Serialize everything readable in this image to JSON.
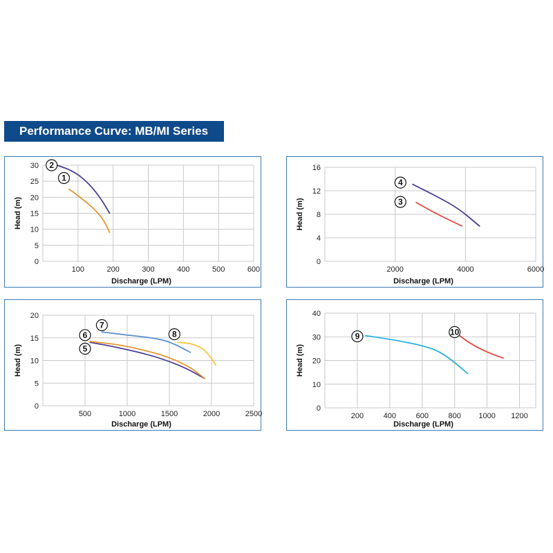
{
  "page": {
    "title": "Performance Curve: MB/MI Series"
  },
  "chart_data": [
    {
      "type": "line",
      "xlabel": "Discharge (LPM)",
      "ylabel": "Head (m)",
      "xlim": [
        0,
        600
      ],
      "ylim": [
        0,
        30
      ],
      "xticks": [
        100,
        200,
        300,
        400,
        500,
        600
      ],
      "yticks": [
        0,
        5,
        10,
        15,
        20,
        25,
        30
      ],
      "xtick_labels": [
        "100",
        "200",
        "300",
        "400",
        "500",
        "600"
      ],
      "ytick_labels": [
        "0",
        "5",
        "10",
        "15",
        "20",
        "25",
        "30"
      ],
      "grid": true,
      "series": [
        {
          "name": "1",
          "color": "#e8962f",
          "label_at": [
            60,
            26
          ],
          "points": [
            [
              75,
              22.5
            ],
            [
              100,
              20.5
            ],
            [
              140,
              17
            ],
            [
              170,
              13.5
            ],
            [
              190,
              9
            ]
          ]
        },
        {
          "name": "2",
          "color": "#4a3f91",
          "label_at": [
            25,
            30
          ],
          "points": [
            [
              40,
              30
            ],
            [
              80,
              28.5
            ],
            [
              120,
              25.5
            ],
            [
              160,
              20.5
            ],
            [
              190,
              15
            ]
          ]
        }
      ]
    },
    {
      "type": "line",
      "xlabel": "Discharge (LPM)",
      "ylabel": "Head (m)",
      "xlim": [
        0,
        6000
      ],
      "ylim": [
        0,
        16
      ],
      "xticks": [
        2000,
        4000,
        6000
      ],
      "yticks": [
        0,
        4,
        8,
        12,
        16
      ],
      "xtick_labels": [
        "2000",
        "4000",
        "6000"
      ],
      "ytick_labels": [
        "0",
        "4",
        "8",
        "12",
        "16"
      ],
      "grid": true,
      "series": [
        {
          "name": "3",
          "color": "#e0483a",
          "label_at": [
            2150,
            10.1
          ],
          "points": [
            [
              2600,
              10
            ],
            [
              3200,
              8
            ],
            [
              3900,
              6
            ]
          ]
        },
        {
          "name": "4",
          "color": "#4a3f91",
          "label_at": [
            2150,
            13.4
          ],
          "points": [
            [
              2500,
              13.1
            ],
            [
              3200,
              11
            ],
            [
              3800,
              9
            ],
            [
              4400,
              6
            ]
          ]
        }
      ]
    },
    {
      "type": "line",
      "xlabel": "Discharge (LPM)",
      "ylabel": "Head (m)",
      "xlim": [
        0,
        2500
      ],
      "ylim": [
        0,
        20
      ],
      "xticks": [
        500,
        1000,
        1500,
        2000,
        2500
      ],
      "yticks": [
        0,
        5,
        10,
        15,
        20
      ],
      "xtick_labels": [
        "500",
        "1000",
        "1500",
        "2000",
        "2500"
      ],
      "ytick_labels": [
        "0",
        "5",
        "10",
        "15",
        "20"
      ],
      "grid": true,
      "series": [
        {
          "name": "5",
          "color": "#4a3f91",
          "label_at": [
            500,
            12.6
          ],
          "points": [
            [
              560,
              14
            ],
            [
              800,
              13.2
            ],
            [
              1100,
              12
            ],
            [
              1400,
              10.5
            ],
            [
              1700,
              8.3
            ],
            [
              1920,
              6
            ]
          ]
        },
        {
          "name": "6",
          "color": "#e8962f",
          "label_at": [
            500,
            15.6
          ],
          "points": [
            [
              560,
              14.2
            ],
            [
              900,
              13.5
            ],
            [
              1200,
              12.3
            ],
            [
              1500,
              10.7
            ],
            [
              1750,
              8.5
            ],
            [
              1920,
              6
            ]
          ]
        },
        {
          "name": "7",
          "color": "#5b8dc9",
          "label_at": [
            700,
            17.8
          ],
          "points": [
            [
              700,
              16.3
            ],
            [
              1000,
              15.6
            ],
            [
              1300,
              15
            ],
            [
              1500,
              14.2
            ],
            [
              1750,
              11.8
            ]
          ]
        },
        {
          "name": "8",
          "color": "#f2c53d",
          "label_at": [
            1560,
            15.8
          ],
          "points": [
            [
              1600,
              14
            ],
            [
              1750,
              13.8
            ],
            [
              1900,
              12.7
            ],
            [
              2000,
              10.5
            ],
            [
              2050,
              9
            ]
          ]
        }
      ]
    },
    {
      "type": "line",
      "xlabel": "Discharge (LPM)",
      "ylabel": "Head (m)",
      "xlim": [
        0,
        1300
      ],
      "ylim": [
        0,
        40
      ],
      "xticks": [
        200,
        400,
        600,
        800,
        1000,
        1200
      ],
      "yticks": [
        0,
        10,
        20,
        30,
        40
      ],
      "xtick_labels": [
        "200",
        "400",
        "600",
        "800",
        "1000",
        "1200"
      ],
      "ytick_labels": [
        "0",
        "10",
        "20",
        "30",
        "40"
      ],
      "grid": true,
      "series": [
        {
          "name": "9",
          "color": "#2cb1e0",
          "label_at": [
            200,
            30.2
          ],
          "points": [
            [
              250,
              30.5
            ],
            [
              450,
              28.5
            ],
            [
              650,
              25.5
            ],
            [
              750,
              22
            ],
            [
              880,
              14.5
            ]
          ]
        },
        {
          "name": "10",
          "color": "#e0483a",
          "label_at": [
            800,
            32
          ],
          "points": [
            [
              830,
              30.5
            ],
            [
              900,
              27
            ],
            [
              1000,
              23.5
            ],
            [
              1100,
              21
            ]
          ]
        }
      ]
    }
  ]
}
